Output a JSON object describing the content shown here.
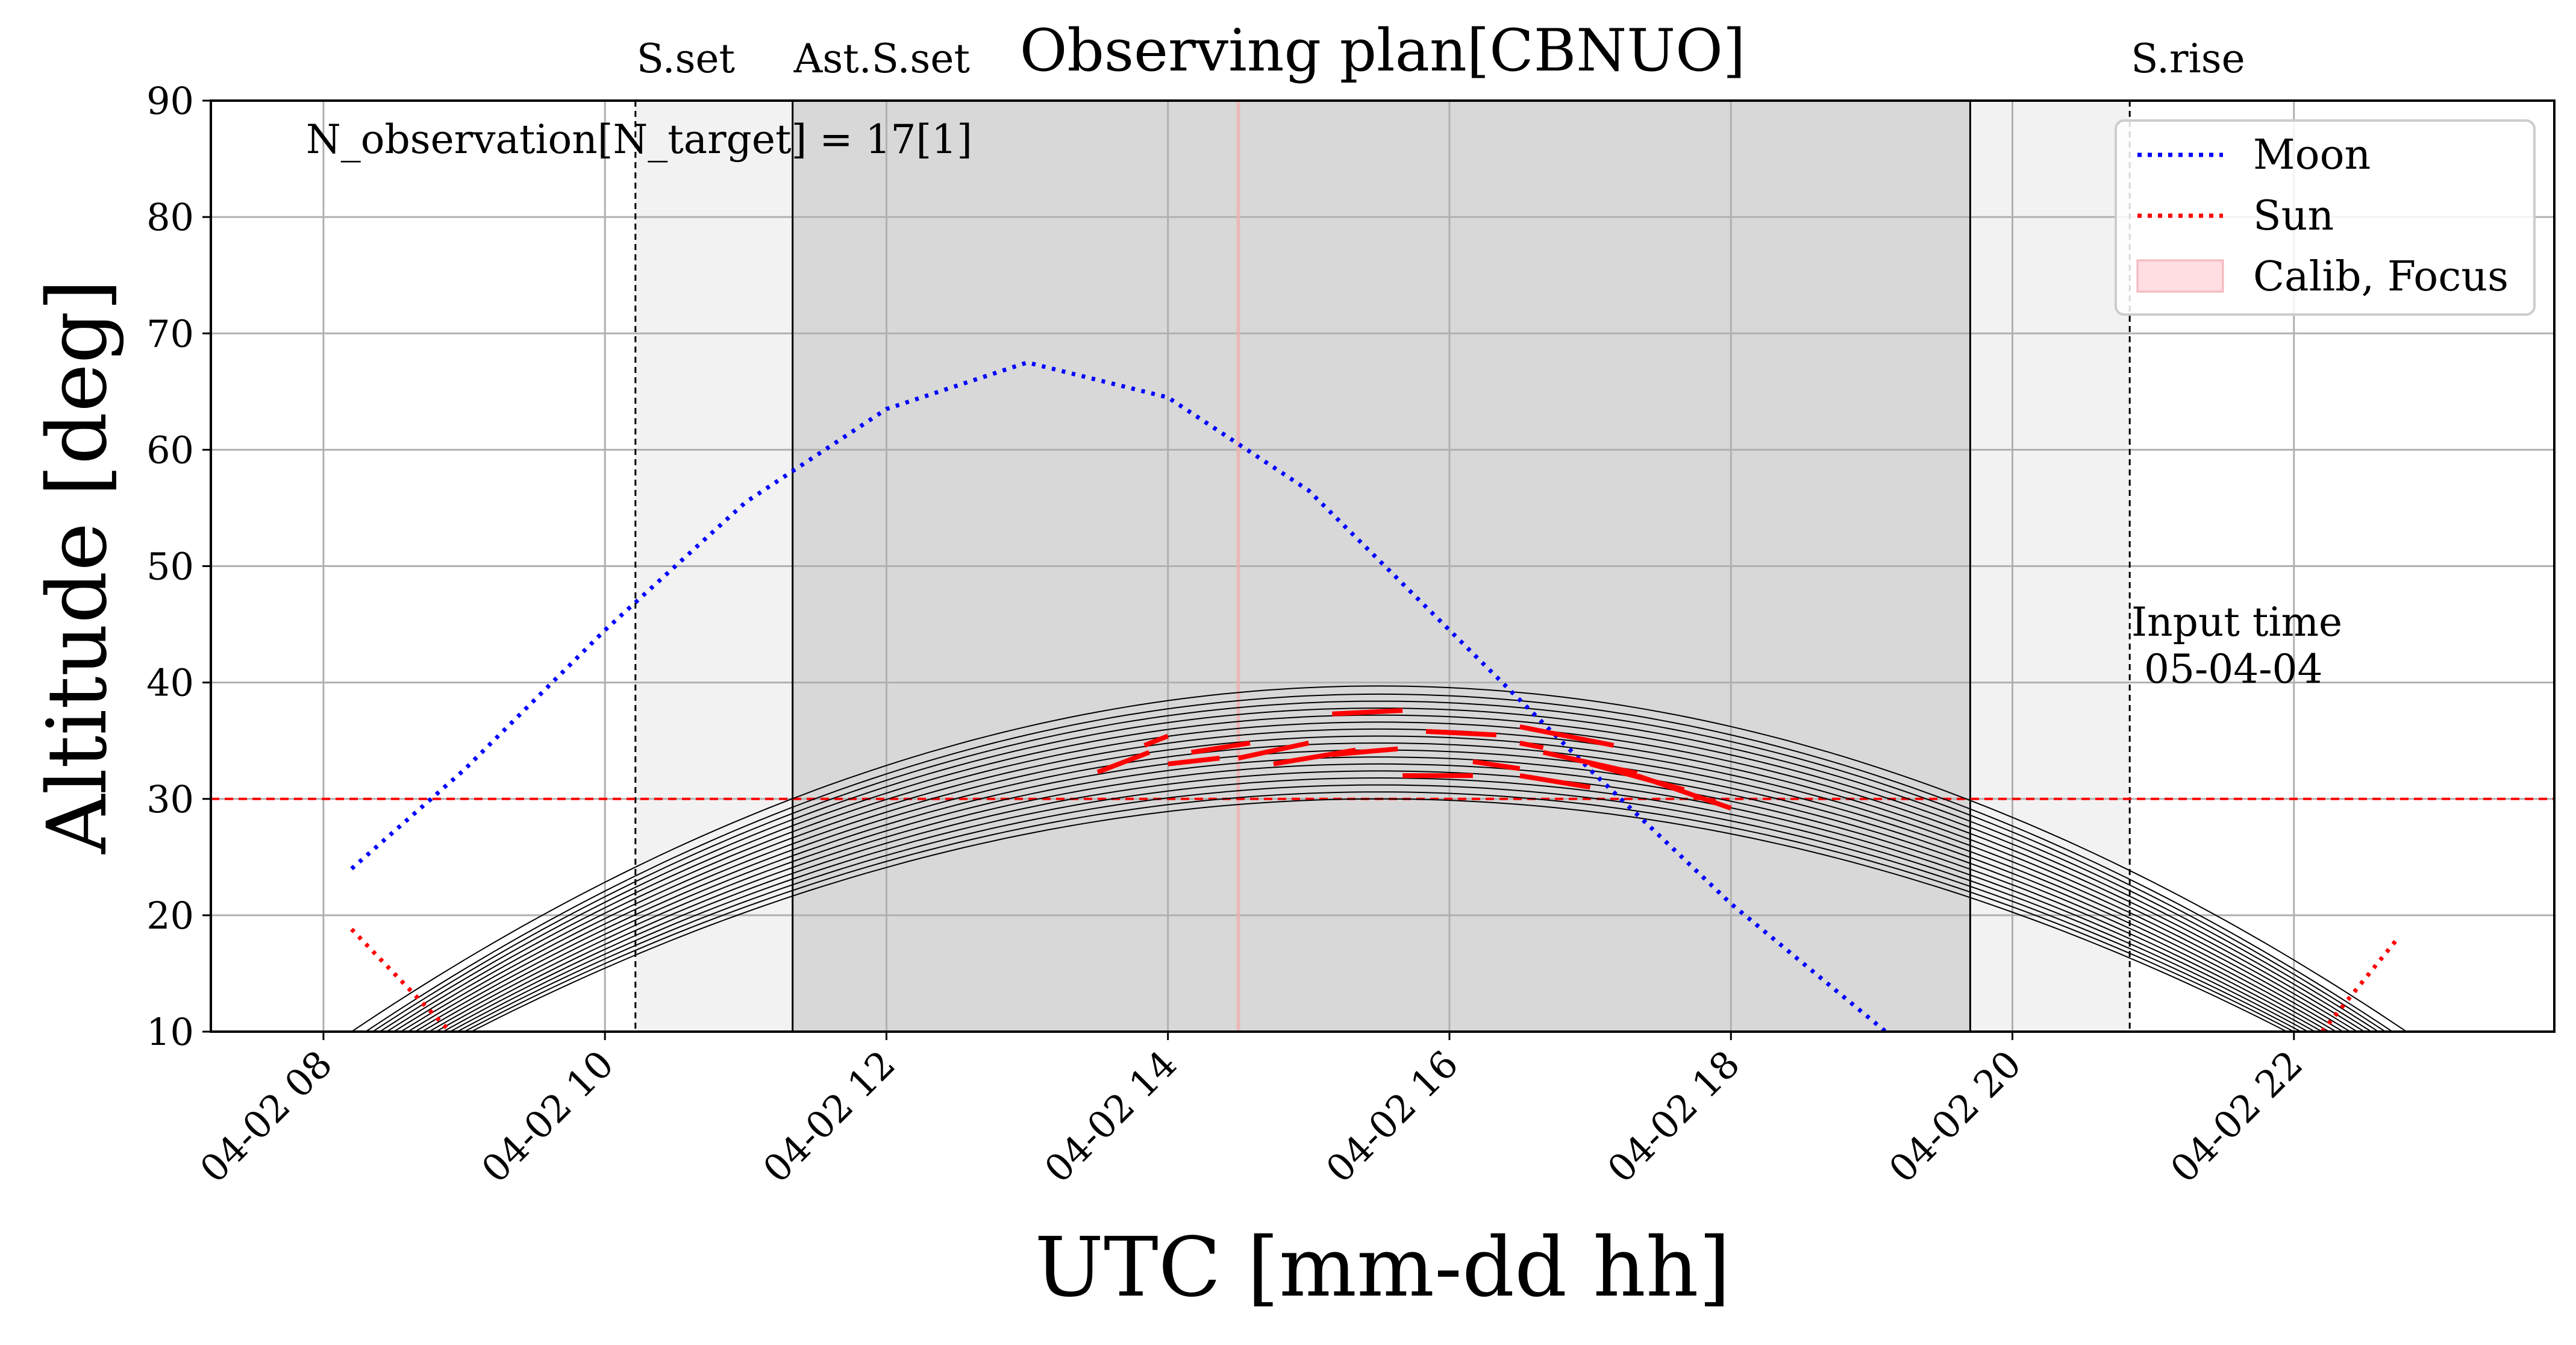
{
  "chart_data": {
    "type": "line",
    "title": "Observing plan[CBNUO]",
    "xlabel": "UTC [mm-dd hh]",
    "ylabel": "Altitude [deg]",
    "xlim": [
      "04-02 07:12",
      "04-02 23:51"
    ],
    "ylim": [
      10,
      90
    ],
    "x_ticks": [
      "04-02 08",
      "04-02 10",
      "04-02 12",
      "04-02 14",
      "04-02 16",
      "04-02 18",
      "04-02 20",
      "04-02 22"
    ],
    "y_ticks": [
      10,
      20,
      30,
      40,
      50,
      60,
      70,
      80,
      90
    ],
    "grid": true,
    "legend_position": "upper-right",
    "legend": [
      {
        "label": "Moon",
        "style": "dotted-line",
        "color": "#0000ff"
      },
      {
        "label": "Sun",
        "style": "dotted-line",
        "color": "#ff0000"
      },
      {
        "label": "Calib, Focus",
        "style": "filled-patch",
        "color": "#ffdde0"
      }
    ],
    "annotations": {
      "count": "N_observation[N_target] = 17[1]",
      "input_time": "Input time\n 05-04-04"
    },
    "events": [
      {
        "label": "S.set",
        "time": "04-02 10:13"
      },
      {
        "label": "Ast.S.set",
        "time": "04-02 11:20"
      },
      {
        "label": "",
        "time": "04-02 19:42"
      },
      {
        "label": "S.rise",
        "time": "04-02 20:50"
      }
    ],
    "night_shading": [
      {
        "from": "04-02 10:13",
        "to": "04-02 11:20",
        "kind": "twilight"
      },
      {
        "from": "04-02 11:20",
        "to": "04-02 19:42",
        "kind": "night"
      },
      {
        "from": "04-02 19:42",
        "to": "04-02 20:50",
        "kind": "twilight"
      }
    ],
    "altitude_limit": 30,
    "calib_focus_time": "04-02 14:30",
    "moon": {
      "name": "Moon",
      "color": "#0000ff",
      "x": [
        "04-02 08:12",
        "04-02 09:00",
        "04-02 10:00",
        "04-02 11:00",
        "04-02 12:00",
        "04-02 13:00",
        "04-02 14:00",
        "04-02 15:00",
        "04-02 16:00",
        "04-02 17:00",
        "04-02 18:00",
        "04-02 19:00",
        "04-02 19:06"
      ],
      "y": [
        24,
        32.5,
        44.5,
        55.5,
        63.5,
        67.5,
        64.5,
        56.5,
        44.5,
        32.5,
        21,
        11,
        10
      ]
    },
    "sun": {
      "name": "Sun",
      "color": "#ff0000",
      "segments": [
        {
          "x": [
            "04-02 08:12",
            "04-02 08:54"
          ],
          "y": [
            18.8,
            10
          ]
        },
        {
          "x": [
            "04-02 22:12",
            "04-02 22:45"
          ],
          "y": [
            10,
            18.2
          ]
        }
      ]
    },
    "targets": {
      "n_curves": 17,
      "peak_time": "04-02 15:30",
      "peak_altitudes": [
        39.7,
        39.0,
        38.4,
        37.8,
        37.2,
        36.6,
        36.0,
        35.4,
        34.8,
        34.2,
        33.6,
        33.0,
        32.4,
        31.8,
        31.2,
        30.6,
        30.0
      ],
      "half_width_hours": [
        7.3,
        7.2,
        7.15,
        7.1,
        7.05,
        7.0,
        6.95,
        6.9,
        6.85,
        6.8,
        6.75,
        6.7,
        6.65,
        6.6,
        6.55,
        6.5,
        6.45
      ]
    },
    "observations": [
      {
        "x": [
          "04-02 13:30",
          "04-02 13:52"
        ],
        "y": [
          32.3,
          34.0
        ]
      },
      {
        "x": [
          "04-02 13:50",
          "04-02 14:00"
        ],
        "y": [
          34.6,
          35.4
        ]
      },
      {
        "x": [
          "04-02 14:00",
          "04-02 14:22"
        ],
        "y": [
          33.0,
          33.5
        ]
      },
      {
        "x": [
          "04-02 14:10",
          "04-02 14:35"
        ],
        "y": [
          34.0,
          34.8
        ]
      },
      {
        "x": [
          "04-02 14:30",
          "04-02 15:00"
        ],
        "y": [
          33.5,
          34.8
        ]
      },
      {
        "x": [
          "04-02 14:45",
          "04-02 15:20"
        ],
        "y": [
          33.0,
          34.2
        ]
      },
      {
        "x": [
          "04-02 15:10",
          "04-02 15:38"
        ],
        "y": [
          33.8,
          34.3
        ]
      },
      {
        "x": [
          "04-02 15:10",
          "04-02 15:40"
        ],
        "y": [
          37.3,
          37.6
        ]
      },
      {
        "x": [
          "04-02 15:40",
          "04-02 16:10"
        ],
        "y": [
          32.0,
          32.0
        ]
      },
      {
        "x": [
          "04-02 15:50",
          "04-02 16:20"
        ],
        "y": [
          35.8,
          35.5
        ]
      },
      {
        "x": [
          "04-02 16:10",
          "04-02 16:30"
        ],
        "y": [
          33.2,
          32.6
        ]
      },
      {
        "x": [
          "04-02 16:30",
          "04-02 16:40"
        ],
        "y": [
          34.8,
          34.4
        ]
      },
      {
        "x": [
          "04-02 16:30",
          "04-02 17:00"
        ],
        "y": [
          32.0,
          31.0
        ]
      },
      {
        "x": [
          "04-02 16:30",
          "04-02 17:10"
        ],
        "y": [
          36.2,
          34.6
        ]
      },
      {
        "x": [
          "04-02 16:40",
          "04-02 17:20"
        ],
        "y": [
          34.0,
          32.2
        ]
      },
      {
        "x": [
          "04-02 17:00",
          "04-02 17:40"
        ],
        "y": [
          33.0,
          30.8
        ]
      },
      {
        "x": [
          "04-02 17:20",
          "04-02 18:00"
        ],
        "y": [
          32.0,
          29.2
        ]
      }
    ],
    "colors": {
      "moon": "#0000ff",
      "sun": "#ff0000",
      "observation": "#ff0000",
      "target": "#000000",
      "altitude_limit": "#ff0000",
      "night": "#d8d8d8",
      "twilight": "#f2f2f2",
      "calib": "#ffdde0",
      "grid": "#b0b0b0"
    }
  }
}
